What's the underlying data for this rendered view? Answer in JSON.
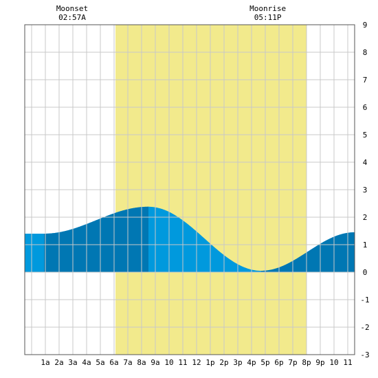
{
  "chart_data": {
    "type": "area",
    "title": "",
    "xlabel": "",
    "ylabel": "",
    "x_domain_hours": [
      -0.5,
      23.5
    ],
    "ylim": [
      -3,
      9
    ],
    "y_ticks": [
      -3,
      -2,
      -1,
      0,
      1,
      2,
      3,
      4,
      5,
      6,
      7,
      8,
      9
    ],
    "x_ticks": [
      {
        "hour": 1,
        "label": "1a"
      },
      {
        "hour": 2,
        "label": "2a"
      },
      {
        "hour": 3,
        "label": "3a"
      },
      {
        "hour": 4,
        "label": "4a"
      },
      {
        "hour": 5,
        "label": "5a"
      },
      {
        "hour": 6,
        "label": "6a"
      },
      {
        "hour": 7,
        "label": "7a"
      },
      {
        "hour": 8,
        "label": "8a"
      },
      {
        "hour": 9,
        "label": "9a"
      },
      {
        "hour": 10,
        "label": "10"
      },
      {
        "hour": 11,
        "label": "11"
      },
      {
        "hour": 12,
        "label": "12"
      },
      {
        "hour": 13,
        "label": "1p"
      },
      {
        "hour": 14,
        "label": "2p"
      },
      {
        "hour": 15,
        "label": "3p"
      },
      {
        "hour": 16,
        "label": "4p"
      },
      {
        "hour": 17,
        "label": "5p"
      },
      {
        "hour": 18,
        "label": "6p"
      },
      {
        "hour": 19,
        "label": "7p"
      },
      {
        "hour": 20,
        "label": "8p"
      },
      {
        "hour": 21,
        "label": "9p"
      },
      {
        "hour": 22,
        "label": "10"
      },
      {
        "hour": 23,
        "label": "11"
      }
    ],
    "daylight": {
      "start_hour": 6.1,
      "end_hour": 20.0
    },
    "tide_extremes": [
      {
        "hour": 0.9,
        "level": 1.4
      },
      {
        "hour": 8.5,
        "level": 2.38
      },
      {
        "hour": 16.7,
        "level": 0.05
      },
      {
        "hour": 23.5,
        "level": 1.45
      }
    ],
    "dark_shading_ranges": [
      [
        0.9,
        8.5
      ],
      [
        16.7,
        23.5
      ]
    ],
    "events": [
      {
        "title": "Moonset",
        "time": "02:57A",
        "hour": 2.95
      },
      {
        "title": "Moonrise",
        "time": "05:11P",
        "hour": 17.18
      }
    ],
    "grid": true,
    "colors": {
      "daylight": "#f2ea8c",
      "tide_light": "#0099dd",
      "tide_dark": "#0077b3",
      "grid": "#c8c8c8",
      "frame": "#555555"
    }
  }
}
